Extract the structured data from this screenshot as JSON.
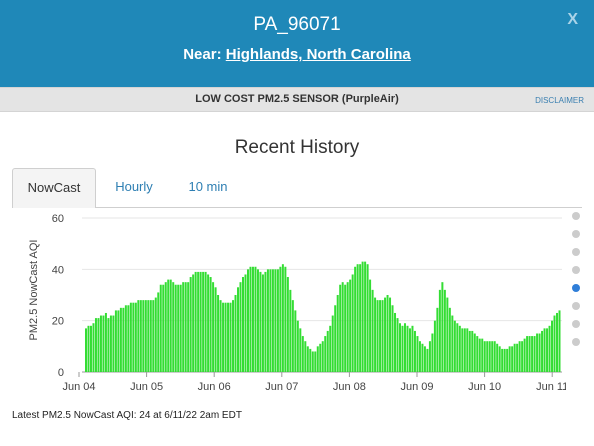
{
  "header": {
    "sensor_name": "PA_96071",
    "near_label": "Near:",
    "near_location": "Highlands, North Carolina",
    "close_label": "X"
  },
  "subbar": {
    "sensor_type": "LOW COST PM2.5 SENSOR (PurpleAir)",
    "disclaimer": "DISCLAIMER"
  },
  "section_title": "Recent History",
  "tabs": [
    {
      "label": "NowCast",
      "active": true
    },
    {
      "label": "Hourly",
      "active": false
    },
    {
      "label": "10 min",
      "active": false
    }
  ],
  "pagination": {
    "count": 8,
    "active_index": 4
  },
  "chart_data": {
    "type": "bar",
    "ylabel": "PM2.5 NowCast AQI",
    "ylim": [
      0,
      60
    ],
    "yticks": [
      0,
      20,
      40,
      60
    ],
    "xticks": [
      "Jun 04",
      "Jun 05",
      "Jun 06",
      "Jun 07",
      "Jun 08",
      "Jun 09",
      "Jun 10",
      "Jun 11"
    ],
    "bar_color": "#33dd33",
    "grid": true,
    "values": [
      17,
      18,
      18,
      19,
      21,
      21,
      22,
      22,
      23,
      21,
      22,
      22,
      24,
      24,
      25,
      25,
      26,
      26,
      27,
      27,
      27,
      28,
      28,
      28,
      28,
      28,
      28,
      28,
      29,
      31,
      34,
      34,
      35,
      36,
      36,
      35,
      34,
      34,
      34,
      35,
      35,
      35,
      37,
      38,
      39,
      39,
      39,
      39,
      39,
      38,
      37,
      35,
      33,
      30,
      28,
      27,
      27,
      27,
      27,
      28,
      30,
      33,
      35,
      37,
      38,
      40,
      41,
      41,
      41,
      40,
      39,
      38,
      39,
      40,
      40,
      40,
      40,
      40,
      41,
      42,
      41,
      37,
      32,
      28,
      24,
      20,
      17,
      14,
      12,
      10,
      9,
      8,
      8,
      10,
      11,
      12,
      14,
      16,
      18,
      22,
      26,
      30,
      34,
      35,
      34,
      35,
      36,
      38,
      41,
      42,
      42,
      43,
      43,
      42,
      36,
      32,
      29,
      28,
      28,
      28,
      29,
      30,
      29,
      26,
      23,
      21,
      19,
      18,
      19,
      18,
      17,
      18,
      16,
      14,
      12,
      11,
      10,
      9,
      12,
      15,
      20,
      25,
      32,
      35,
      32,
      29,
      25,
      22,
      20,
      19,
      18,
      17,
      17,
      17,
      16,
      16,
      15,
      14,
      13,
      13,
      12,
      12,
      12,
      12,
      12,
      11,
      10,
      9,
      9,
      9,
      10,
      10,
      11,
      11,
      12,
      12,
      13,
      14,
      14,
      14,
      14,
      15,
      15,
      16,
      17,
      17,
      18,
      20,
      22,
      23,
      24
    ]
  },
  "footer": {
    "latest_text": "Latest PM2.5 NowCast AQI: 24 at 6/11/22 2am EDT"
  }
}
